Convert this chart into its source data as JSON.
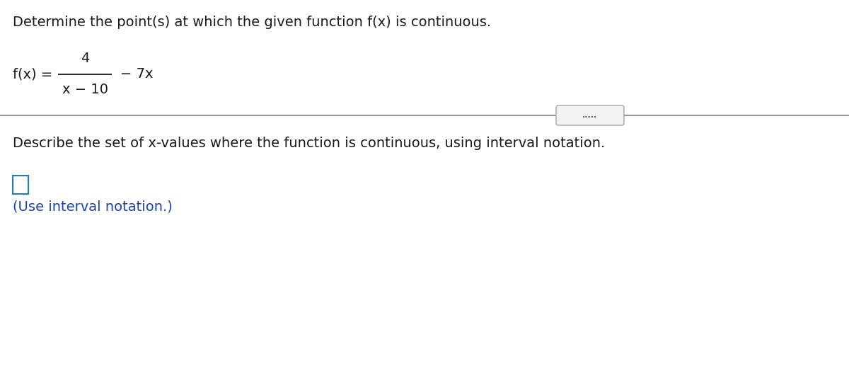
{
  "title_text": "Determine the point(s) at which the given function f(x) is continuous.",
  "title_fontsize": 14,
  "title_color": "#1a1a1a",
  "func_fontsize": 14,
  "func_color": "#1a1a1a",
  "numerator": "4",
  "denominator": "x − 10",
  "minus7x": "− 7x",
  "divider_line_color": "#8a8a8a",
  "dots_text": ".....",
  "describe_text": "Describe the set of x-values where the function is continuous, using interval notation.",
  "describe_fontsize": 14,
  "describe_color": "#1a1a1a",
  "box_color": "#1a7fbf",
  "hint_text": "(Use interval notation.)",
  "hint_fontsize": 14,
  "hint_color": "#1a40bf",
  "bg_color": "#ffffff",
  "fig_width": 12.0,
  "fig_height": 5.51,
  "dpi": 100
}
